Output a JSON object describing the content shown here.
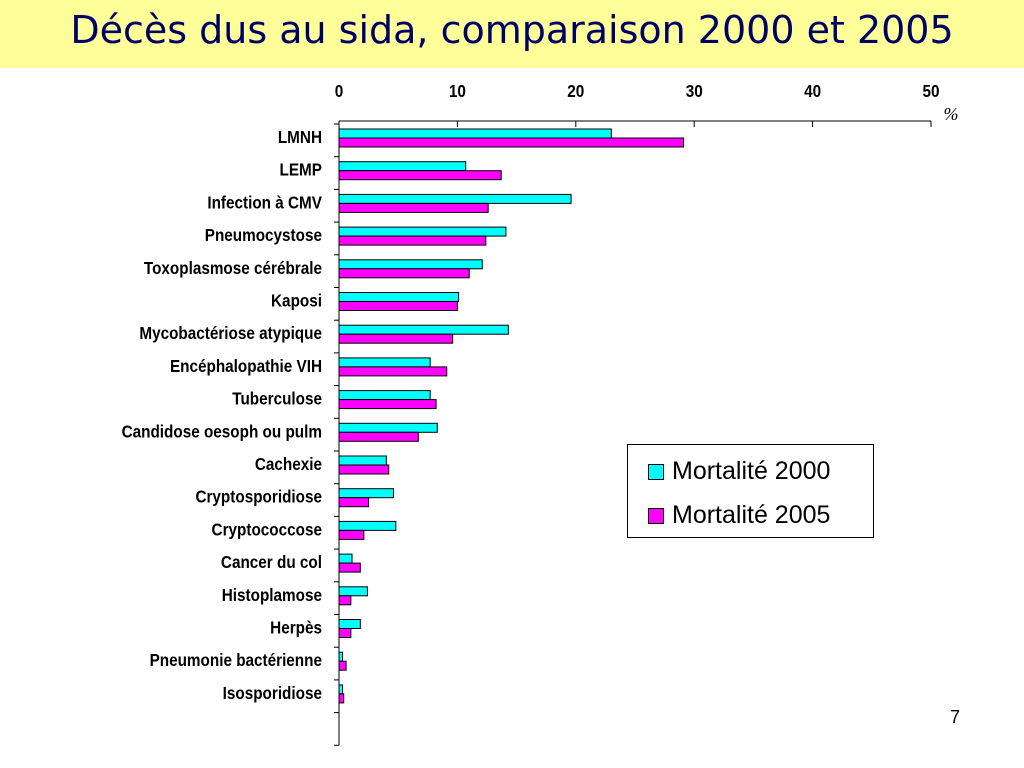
{
  "title": "Décès dus au sida, comparaison 2000 et 2005",
  "page_number": "7",
  "colors": {
    "series_2000": "#00ffff",
    "series_2005": "#ff00ff",
    "title_band": "#ffff99",
    "title_text": "#000066"
  },
  "chart_data": {
    "type": "bar",
    "orientation": "horizontal",
    "title": "Décès dus au sida, comparaison 2000 et 2005",
    "x_unit": "%",
    "xlim": [
      0,
      50
    ],
    "x_ticks": [
      0,
      10,
      20,
      30,
      40,
      50
    ],
    "categories": [
      "LMNH",
      "LEMP",
      "Infection à CMV",
      "Pneumocystose",
      "Toxoplasmose cérébrale",
      "Kaposi",
      "Mycobactériose atypique",
      "Encéphalopathie VIH",
      "Tuberculose",
      "Candidose oesoph ou pulm",
      "Cachexie",
      "Cryptosporidiose",
      "Cryptococcose",
      "Cancer du col",
      "Histoplamose",
      "Herpès",
      "Pneumonie bactérienne",
      "Isosporidiose"
    ],
    "series": [
      {
        "name": "Mortalité 2000",
        "color": "#00ffff",
        "values": [
          23.0,
          10.7,
          19.6,
          14.1,
          12.1,
          10.1,
          14.3,
          7.7,
          7.7,
          8.3,
          4.0,
          4.6,
          4.8,
          1.1,
          2.4,
          1.8,
          0.3,
          0.3
        ]
      },
      {
        "name": "Mortalité 2005",
        "color": "#ff00ff",
        "values": [
          29.1,
          13.7,
          12.6,
          12.4,
          11.0,
          10.0,
          9.6,
          9.1,
          8.2,
          6.7,
          4.2,
          2.5,
          2.1,
          1.8,
          1.0,
          1.0,
          0.6,
          0.4
        ]
      }
    ],
    "legend_position": "right",
    "grid": false
  }
}
